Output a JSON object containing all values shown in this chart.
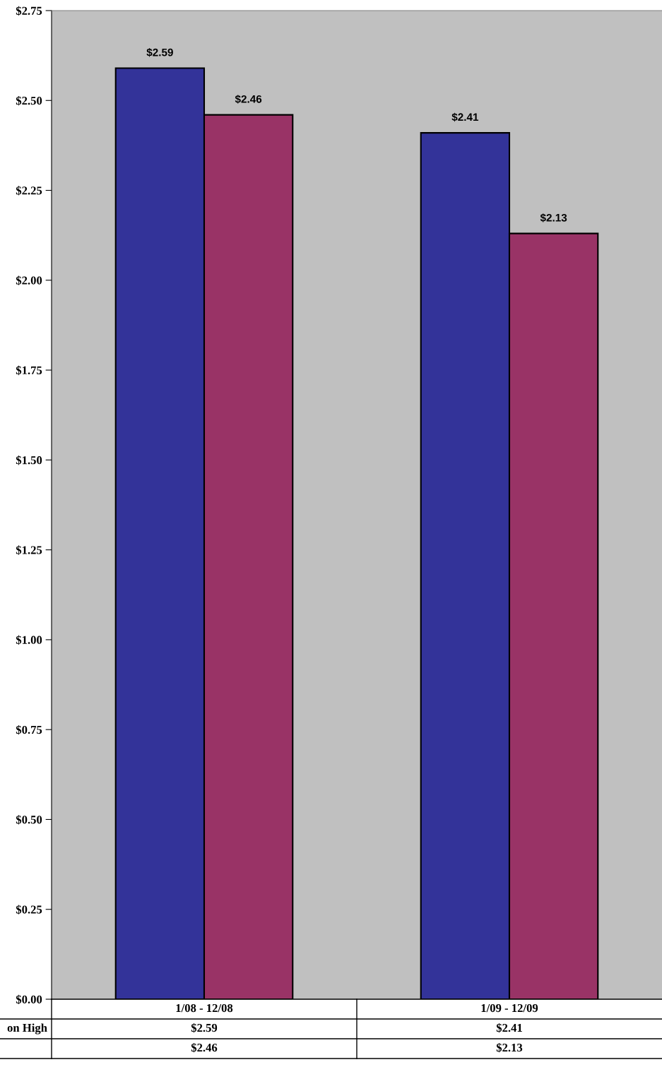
{
  "chart_data": {
    "type": "bar",
    "categories": [
      "1/08 - 12/08",
      "1/09 - 12/09"
    ],
    "series": [
      {
        "color": "#333399",
        "values": [
          2.59,
          2.41
        ],
        "value_labels": [
          "$2.59",
          "$2.41"
        ]
      },
      {
        "color": "#993366",
        "values": [
          2.46,
          2.13
        ],
        "value_labels": [
          "$2.46",
          "$2.13"
        ]
      }
    ],
    "ylim": [
      0,
      2.75
    ],
    "yticks": [
      {
        "value": 0,
        "label": "$0.00"
      },
      {
        "value": 0.25,
        "label": "$0.25"
      },
      {
        "value": 0.5,
        "label": "$0.50"
      },
      {
        "value": 0.75,
        "label": "$0.75"
      },
      {
        "value": 1.0,
        "label": "$1.00"
      },
      {
        "value": 1.25,
        "label": "$1.25"
      },
      {
        "value": 1.5,
        "label": "$1.50"
      },
      {
        "value": 1.75,
        "label": "$1.75"
      },
      {
        "value": 2.0,
        "label": "$2.00"
      },
      {
        "value": 2.25,
        "label": "$2.25"
      },
      {
        "value": 2.5,
        "label": "$2.50"
      },
      {
        "value": 2.75,
        "label": "$2.75"
      }
    ],
    "annotations": [
      "on High"
    ],
    "grid": false,
    "legend": false
  }
}
